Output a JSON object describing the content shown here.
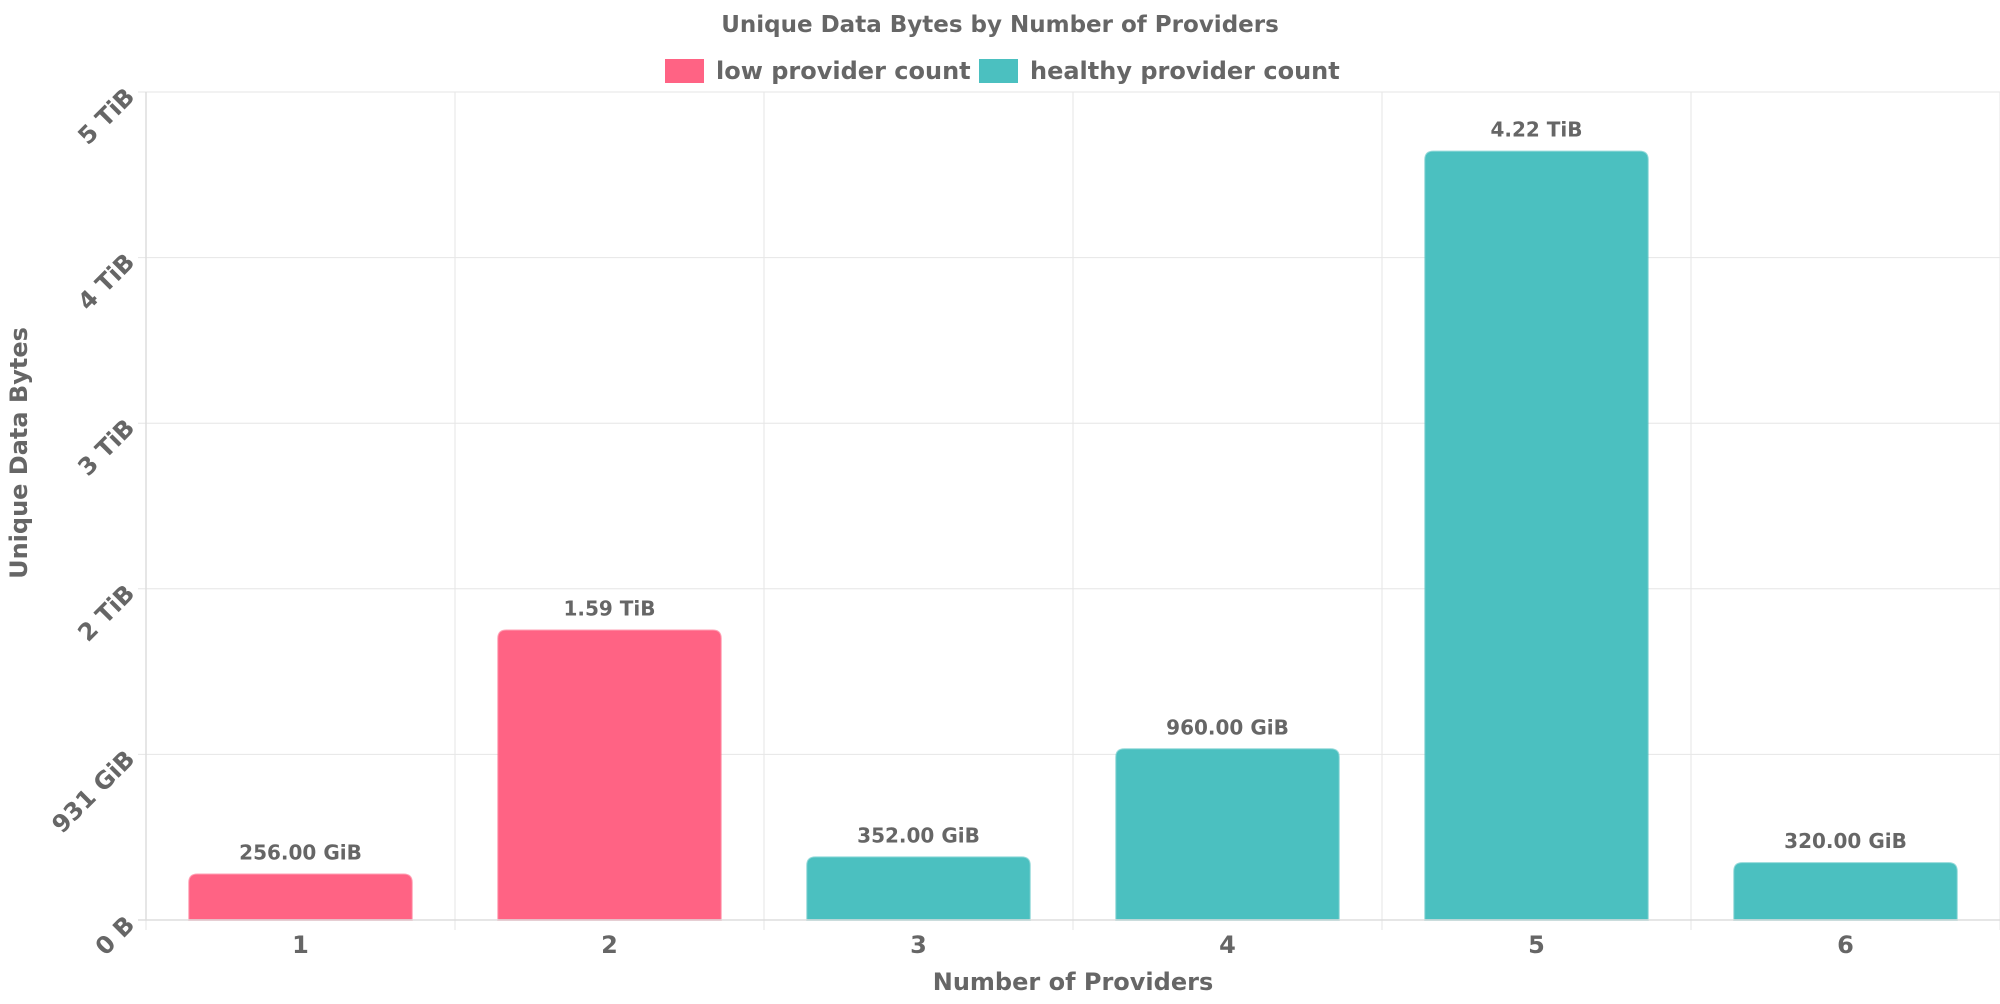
{
  "chart_data": {
    "type": "bar",
    "title": "Unique Data Bytes by Number of Providers",
    "xlabel": "Number of Providers",
    "ylabel": "Unique Data Bytes",
    "categories": [
      "1",
      "2",
      "3",
      "4",
      "5",
      "6"
    ],
    "values_gib": [
      256,
      1628.16,
      352,
      960,
      4321.28,
      320
    ],
    "data_labels": [
      "256.00 GiB",
      "1.59 TiB",
      "352.00 GiB",
      "960.00 GiB",
      "4.22 TiB",
      "320.00 GiB"
    ],
    "bar_series": [
      "low provider count",
      "low provider count",
      "healthy provider count",
      "healthy provider count",
      "healthy provider count",
      "healthy provider count"
    ],
    "ylim_gib": [
      0,
      4656.6
    ],
    "y_ticks": [
      {
        "value_gib": 0,
        "label": "0 B"
      },
      {
        "value_gib": 931.32,
        "label": "931 GiB"
      },
      {
        "value_gib": 1862.65,
        "label": "2 TiB"
      },
      {
        "value_gib": 2793.97,
        "label": "3 TiB"
      },
      {
        "value_gib": 3725.29,
        "label": "4 TiB"
      },
      {
        "value_gib": 4656.61,
        "label": "5 TiB"
      }
    ],
    "legend": [
      {
        "name": "low provider count",
        "color": "#ff6384"
      },
      {
        "name": "healthy provider count",
        "color": "#4bc0c0"
      }
    ],
    "legend_position": "top-center",
    "grid": true
  }
}
